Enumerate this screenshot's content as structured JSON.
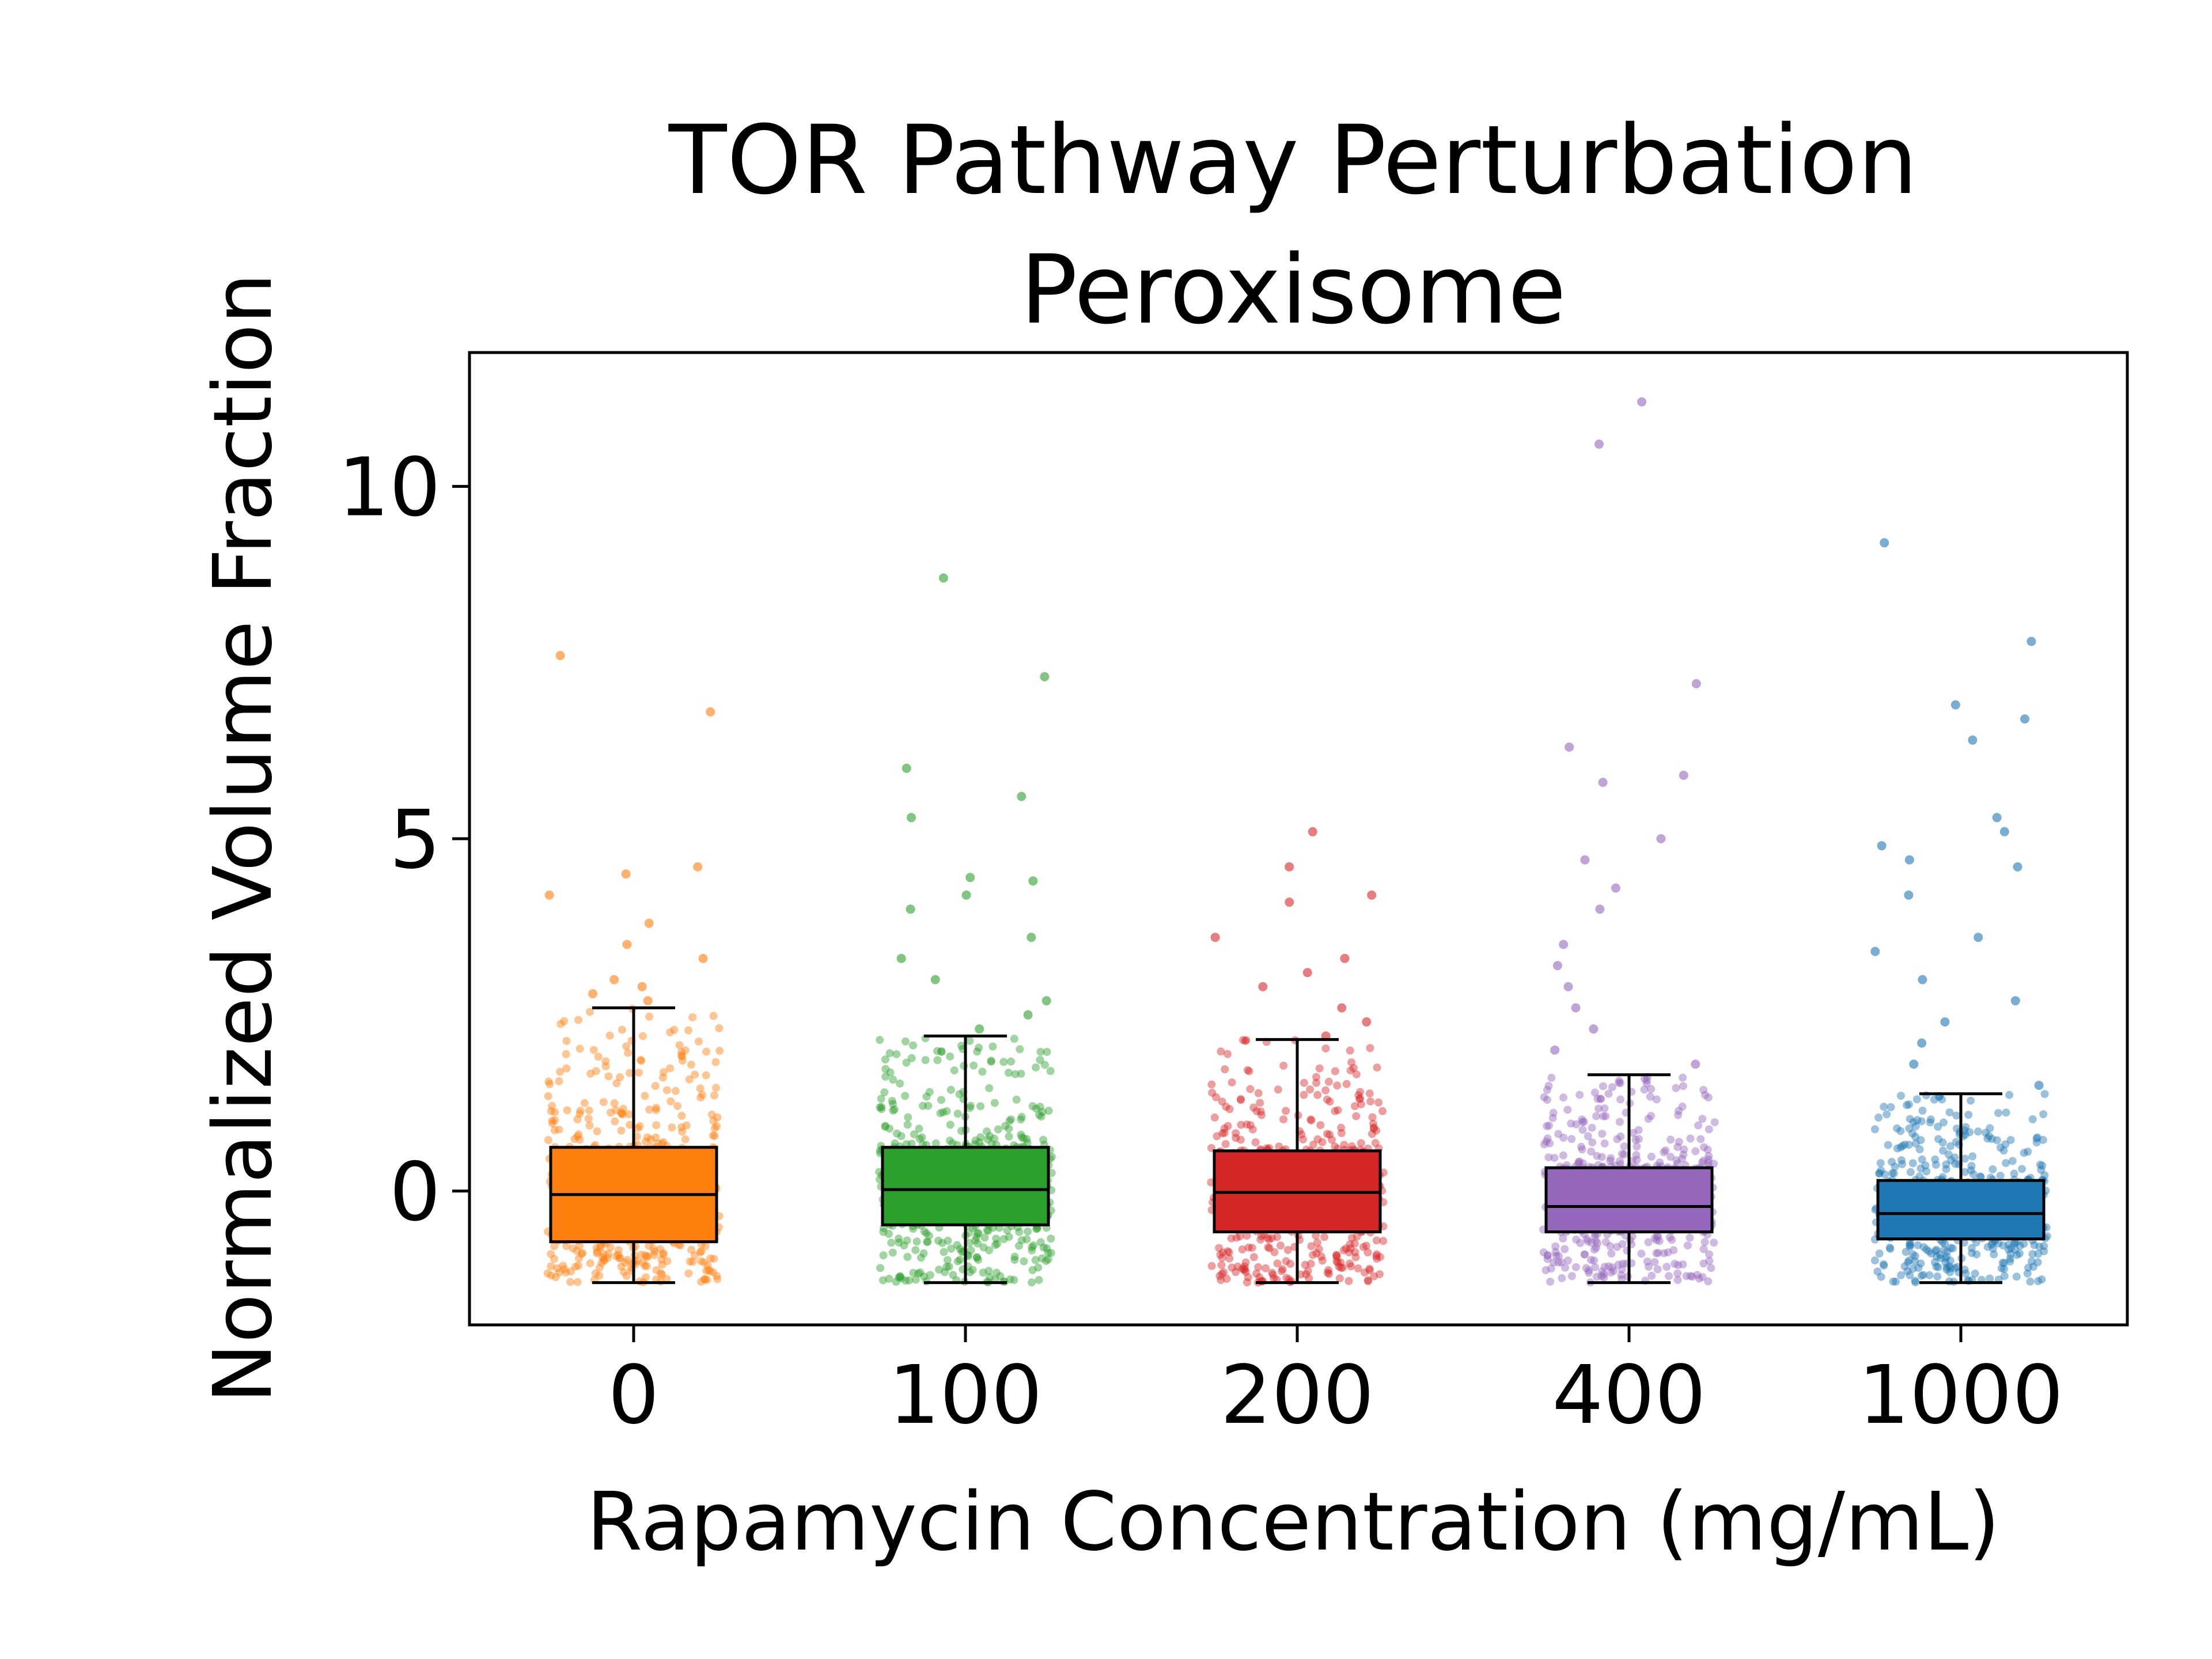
{
  "chart_data": {
    "type": "box",
    "title": "TOR Pathway Perturbation",
    "subtitle": "Peroxisome",
    "xlabel": "Rapamycin Concentration (mg/mL)",
    "ylabel": "Normalized Volume Fraction",
    "ylim": [
      -1.9,
      11.9
    ],
    "yticks": [
      0,
      5,
      10
    ],
    "grid": false,
    "legend": "none",
    "categories": [
      "0",
      "100",
      "200",
      "400",
      "1000"
    ],
    "series": [
      {
        "category": "0",
        "color": "#ff7f0e",
        "whisker_low": -1.3,
        "q1": -0.72,
        "median": -0.05,
        "q3": 0.62,
        "whisker_high": 2.6,
        "outliers": [
          2.7,
          2.8,
          2.9,
          3.0,
          3.3,
          3.5,
          3.8,
          4.2,
          4.5,
          4.6,
          6.8,
          7.6
        ]
      },
      {
        "category": "100",
        "color": "#2ca02c",
        "whisker_low": -1.3,
        "q1": -0.48,
        "median": 0.02,
        "q3": 0.62,
        "whisker_high": 2.2,
        "outliers": [
          2.3,
          2.5,
          2.7,
          3.0,
          3.3,
          3.6,
          4.0,
          4.2,
          4.4,
          4.45,
          5.3,
          5.6,
          6.0,
          7.3,
          8.7
        ]
      },
      {
        "category": "200",
        "color": "#d62728",
        "whisker_low": -1.3,
        "q1": -0.58,
        "median": -0.02,
        "q3": 0.57,
        "whisker_high": 2.15,
        "outliers": [
          2.2,
          2.4,
          2.6,
          2.9,
          3.1,
          3.3,
          3.6,
          4.1,
          4.2,
          4.6,
          5.1
        ]
      },
      {
        "category": "400",
        "color": "#9467bd",
        "whisker_low": -1.3,
        "q1": -0.58,
        "median": -0.22,
        "q3": 0.33,
        "whisker_high": 1.65,
        "outliers": [
          1.8,
          2.0,
          2.3,
          2.6,
          2.9,
          3.2,
          3.5,
          4.0,
          4.3,
          4.7,
          5.0,
          5.8,
          5.9,
          6.3,
          7.2,
          10.6,
          11.2
        ]
      },
      {
        "category": "1000",
        "color": "#1f77b4",
        "whisker_low": -1.3,
        "q1": -0.68,
        "median": -0.32,
        "q3": 0.15,
        "whisker_high": 1.38,
        "outliers": [
          1.5,
          1.8,
          2.1,
          2.4,
          2.7,
          3.0,
          3.4,
          3.6,
          4.2,
          4.6,
          4.7,
          4.9,
          5.1,
          5.3,
          6.4,
          6.7,
          6.9,
          7.8,
          9.2
        ]
      }
    ]
  }
}
